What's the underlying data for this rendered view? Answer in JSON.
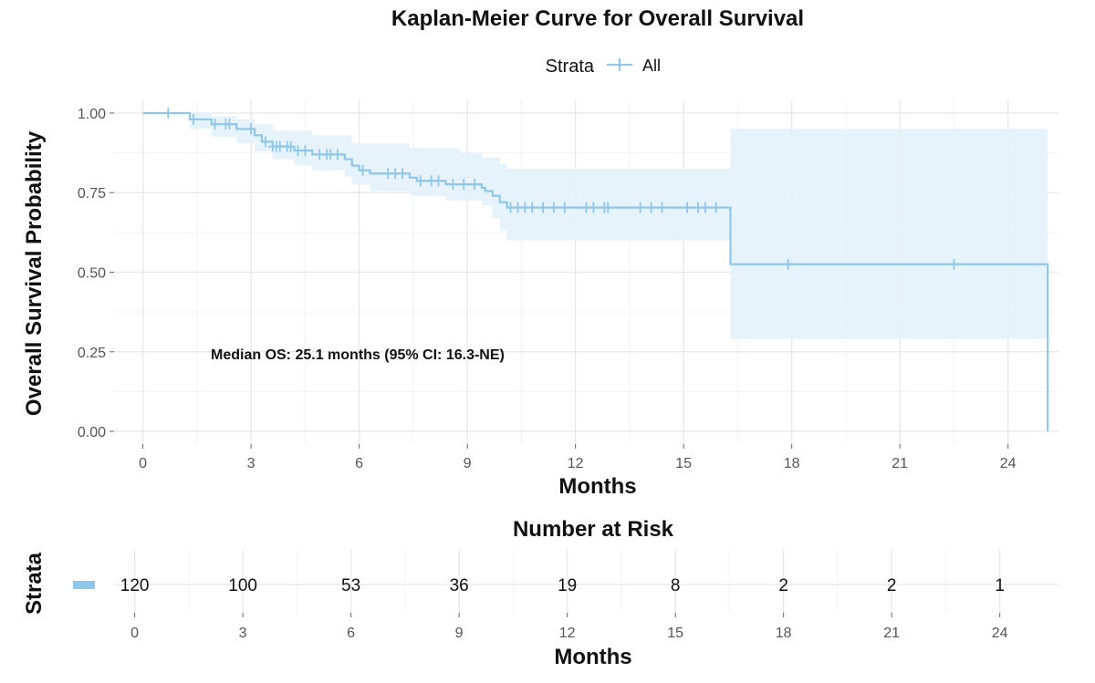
{
  "colors": {
    "curve": "#8ec7ea",
    "ci": "#e4f2fa",
    "grid_major": "#e8e8e8",
    "grid_minor": "#f3f3f3"
  },
  "chart_data": [
    {
      "type": "line",
      "title": "Kaplan-Meier Curve for Overall Survival",
      "xlabel": "Months",
      "ylabel": "Overall Survival Probability",
      "xlim": [
        -0.8,
        25.4
      ],
      "ylim": [
        -0.04,
        1.04
      ],
      "xticks": [
        0,
        3,
        6,
        9,
        12,
        15,
        18,
        21,
        24
      ],
      "yticks": [
        0,
        0.25,
        0.5,
        0.75,
        1
      ],
      "ytick_labels": [
        "0.00",
        "0.25",
        "0.50",
        "0.75",
        "1.00"
      ],
      "grid": true,
      "legend": {
        "title": "Strata",
        "position": "top",
        "entries": [
          "All"
        ]
      },
      "annotation": "Median OS: 25.1 months (95% CI: 16.3-NE)",
      "series": [
        {
          "name": "All",
          "step": [
            [
              0,
              1.0
            ],
            [
              1.3,
              0.98
            ],
            [
              1.9,
              0.965
            ],
            [
              2.6,
              0.95
            ],
            [
              3.1,
              0.93
            ],
            [
              3.3,
              0.91
            ],
            [
              3.6,
              0.895
            ],
            [
              4.2,
              0.882
            ],
            [
              4.7,
              0.87
            ],
            [
              5.6,
              0.855
            ],
            [
              5.8,
              0.835
            ],
            [
              6.0,
              0.82
            ],
            [
              6.3,
              0.81
            ],
            [
              7.4,
              0.797
            ],
            [
              7.6,
              0.787
            ],
            [
              8.4,
              0.776
            ],
            [
              9.4,
              0.765
            ],
            [
              9.5,
              0.755
            ],
            [
              9.7,
              0.74
            ],
            [
              9.9,
              0.72
            ],
            [
              10.1,
              0.703
            ],
            [
              16.3,
              0.703
            ],
            [
              16.3,
              0.525
            ],
            [
              25.1,
              0.525
            ],
            [
              25.1,
              0.0
            ]
          ],
          "ci_upper": [
            [
              0,
              1.0
            ],
            [
              1.3,
              1.0
            ],
            [
              1.9,
              0.99
            ],
            [
              2.6,
              0.98
            ],
            [
              3.1,
              0.965
            ],
            [
              3.6,
              0.945
            ],
            [
              4.7,
              0.93
            ],
            [
              5.8,
              0.905
            ],
            [
              7.4,
              0.89
            ],
            [
              8.8,
              0.875
            ],
            [
              9.4,
              0.86
            ],
            [
              9.9,
              0.84
            ],
            [
              10.1,
              0.825
            ],
            [
              16.3,
              0.825
            ],
            [
              16.3,
              0.95
            ],
            [
              25.1,
              0.95
            ]
          ],
          "ci_lower": [
            [
              0,
              1.0
            ],
            [
              1.3,
              0.95
            ],
            [
              1.9,
              0.925
            ],
            [
              2.6,
              0.905
            ],
            [
              3.1,
              0.88
            ],
            [
              3.6,
              0.855
            ],
            [
              4.2,
              0.835
            ],
            [
              4.7,
              0.82
            ],
            [
              5.6,
              0.8
            ],
            [
              5.8,
              0.775
            ],
            [
              6.3,
              0.755
            ],
            [
              7.4,
              0.74
            ],
            [
              8.4,
              0.725
            ],
            [
              9.4,
              0.71
            ],
            [
              9.7,
              0.67
            ],
            [
              9.9,
              0.63
            ],
            [
              10.1,
              0.6
            ],
            [
              16.3,
              0.6
            ],
            [
              16.3,
              0.29
            ],
            [
              25.1,
              0.29
            ]
          ],
          "censored": [
            [
              0.7,
              1.0
            ],
            [
              1.4,
              0.98
            ],
            [
              2.0,
              0.965
            ],
            [
              2.3,
              0.965
            ],
            [
              2.4,
              0.965
            ],
            [
              3.0,
              0.95
            ],
            [
              3.4,
              0.91
            ],
            [
              3.6,
              0.895
            ],
            [
              3.7,
              0.895
            ],
            [
              3.8,
              0.895
            ],
            [
              4.0,
              0.895
            ],
            [
              4.1,
              0.895
            ],
            [
              4.3,
              0.882
            ],
            [
              4.5,
              0.882
            ],
            [
              4.9,
              0.87
            ],
            [
              5.1,
              0.87
            ],
            [
              5.2,
              0.87
            ],
            [
              5.4,
              0.87
            ],
            [
              6.1,
              0.82
            ],
            [
              6.8,
              0.81
            ],
            [
              7.0,
              0.81
            ],
            [
              7.2,
              0.81
            ],
            [
              7.7,
              0.787
            ],
            [
              8.0,
              0.787
            ],
            [
              8.2,
              0.787
            ],
            [
              8.6,
              0.776
            ],
            [
              8.9,
              0.776
            ],
            [
              9.2,
              0.776
            ],
            [
              10.2,
              0.703
            ],
            [
              10.4,
              0.703
            ],
            [
              10.6,
              0.703
            ],
            [
              10.8,
              0.703
            ],
            [
              11.1,
              0.703
            ],
            [
              11.4,
              0.703
            ],
            [
              11.7,
              0.703
            ],
            [
              12.3,
              0.703
            ],
            [
              12.5,
              0.703
            ],
            [
              12.8,
              0.703
            ],
            [
              12.9,
              0.703
            ],
            [
              13.8,
              0.703
            ],
            [
              14.1,
              0.703
            ],
            [
              14.4,
              0.703
            ],
            [
              15.1,
              0.703
            ],
            [
              15.4,
              0.703
            ],
            [
              15.6,
              0.703
            ],
            [
              15.9,
              0.703
            ],
            [
              17.9,
              0.525
            ],
            [
              22.5,
              0.525
            ]
          ]
        }
      ]
    },
    {
      "type": "table",
      "title": "Number at Risk",
      "xlabel": "Months",
      "ylabel": "Strata",
      "xticks": [
        0,
        3,
        6,
        9,
        12,
        15,
        18,
        21,
        24
      ],
      "x": [
        0,
        3,
        6,
        9,
        12,
        15,
        18,
        21,
        24
      ],
      "series": [
        {
          "name": "All",
          "values": [
            120,
            100,
            53,
            36,
            19,
            8,
            2,
            2,
            1
          ]
        }
      ]
    }
  ]
}
